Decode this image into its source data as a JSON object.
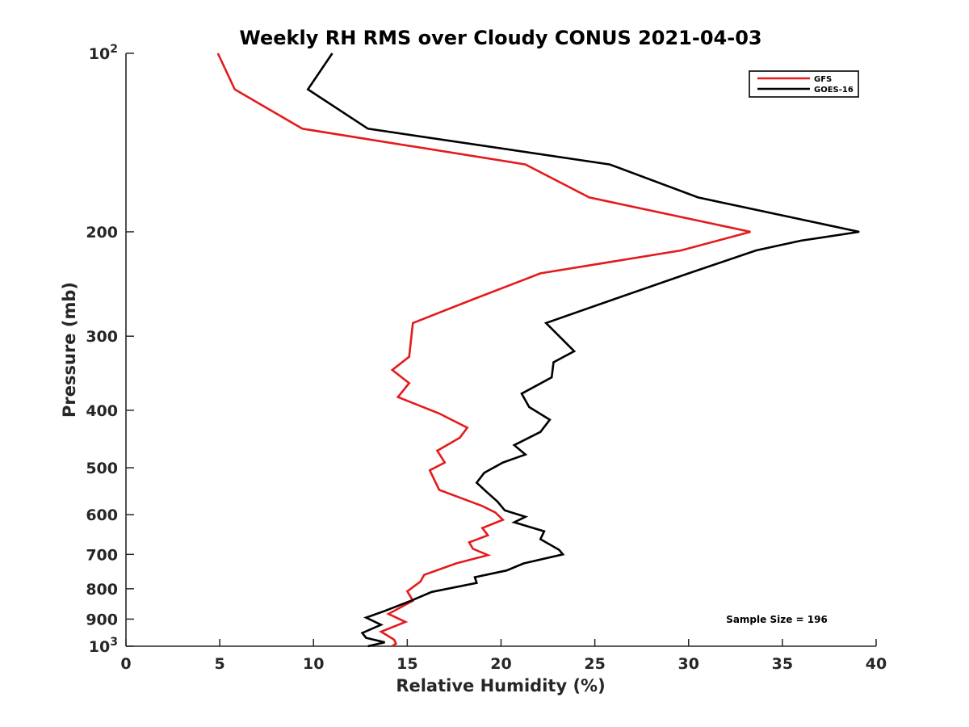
{
  "chart_data": {
    "type": "line",
    "title": "Weekly RH RMS over Cloudy CONUS 2021-04-03",
    "xlabel": "Relative Humidity (%)",
    "ylabel": "Pressure (mb)",
    "xlim": [
      0,
      40
    ],
    "ylim": [
      100,
      1000
    ],
    "y_scale": "log",
    "y_reversed": true,
    "x_ticks": [
      "0",
      "5",
      "10",
      "15",
      "20",
      "25",
      "30",
      "35",
      "40"
    ],
    "y_ticks": [
      {
        "value": 100,
        "base": "10",
        "exp": "2"
      },
      {
        "value": 200,
        "label": "200"
      },
      {
        "value": 300,
        "label": "300"
      },
      {
        "value": 400,
        "label": "400"
      },
      {
        "value": 500,
        "label": "500"
      },
      {
        "value": 600,
        "label": "600"
      },
      {
        "value": 700,
        "label": "700"
      },
      {
        "value": 800,
        "label": "800"
      },
      {
        "value": 900,
        "label": "900"
      },
      {
        "value": 1000,
        "base": "10",
        "exp": "3"
      }
    ],
    "grid": false,
    "legend": "top-right",
    "annotation": "Sample Size = 196",
    "series": [
      {
        "name": "GFS",
        "color": "#e41a1c",
        "points": [
          [
            4.9,
            100
          ],
          [
            5.8,
            115
          ],
          [
            9.4,
            134
          ],
          [
            21.3,
            154
          ],
          [
            24.7,
            175
          ],
          [
            33.3,
            200
          ],
          [
            29.6,
            215
          ],
          [
            22.1,
            235
          ],
          [
            18.5,
            260
          ],
          [
            15.3,
            285
          ],
          [
            15.1,
            325
          ],
          [
            14.2,
            342
          ],
          [
            15.1,
            360
          ],
          [
            14.5,
            380
          ],
          [
            16.7,
            405
          ],
          [
            18.2,
            428
          ],
          [
            17.8,
            445
          ],
          [
            16.6,
            468
          ],
          [
            17.0,
            490
          ],
          [
            16.2,
            505
          ],
          [
            16.7,
            545
          ],
          [
            19.0,
            580
          ],
          [
            19.7,
            595
          ],
          [
            20.1,
            612
          ],
          [
            19.0,
            632
          ],
          [
            19.3,
            650
          ],
          [
            18.3,
            668
          ],
          [
            18.5,
            685
          ],
          [
            19.3,
            702
          ],
          [
            17.6,
            725
          ],
          [
            15.9,
            758
          ],
          [
            15.7,
            778
          ],
          [
            15.0,
            808
          ],
          [
            15.3,
            838
          ],
          [
            14.0,
            882
          ],
          [
            14.9,
            910
          ],
          [
            13.6,
            945
          ],
          [
            14.3,
            975
          ],
          [
            14.4,
            990
          ],
          [
            14.2,
            1000
          ]
        ]
      },
      {
        "name": "GOES-16",
        "color": "#000000",
        "points": [
          [
            11.0,
            100
          ],
          [
            9.7,
            115
          ],
          [
            12.9,
            134
          ],
          [
            25.8,
            154
          ],
          [
            30.5,
            175
          ],
          [
            39.1,
            200
          ],
          [
            36.0,
            207
          ],
          [
            33.6,
            215
          ],
          [
            30.0,
            235
          ],
          [
            26.0,
            260
          ],
          [
            22.4,
            285
          ],
          [
            23.1,
            300
          ],
          [
            23.9,
            318
          ],
          [
            22.8,
            332
          ],
          [
            22.7,
            352
          ],
          [
            21.1,
            375
          ],
          [
            21.5,
            395
          ],
          [
            22.6,
            415
          ],
          [
            22.1,
            435
          ],
          [
            20.7,
            458
          ],
          [
            21.3,
            475
          ],
          [
            20.1,
            490
          ],
          [
            19.1,
            510
          ],
          [
            18.7,
            530
          ],
          [
            19.2,
            548
          ],
          [
            19.8,
            570
          ],
          [
            20.2,
            590
          ],
          [
            21.3,
            605
          ],
          [
            20.7,
            618
          ],
          [
            22.3,
            640
          ],
          [
            22.1,
            660
          ],
          [
            23.1,
            688
          ],
          [
            23.3,
            700
          ],
          [
            21.2,
            725
          ],
          [
            20.3,
            745
          ],
          [
            18.6,
            765
          ],
          [
            18.7,
            782
          ],
          [
            16.3,
            810
          ],
          [
            15.2,
            838
          ],
          [
            13.8,
            872
          ],
          [
            12.8,
            895
          ],
          [
            13.6,
            920
          ],
          [
            12.6,
            950
          ],
          [
            12.8,
            968
          ],
          [
            13.8,
            985
          ],
          [
            12.9,
            1000
          ]
        ]
      }
    ]
  }
}
